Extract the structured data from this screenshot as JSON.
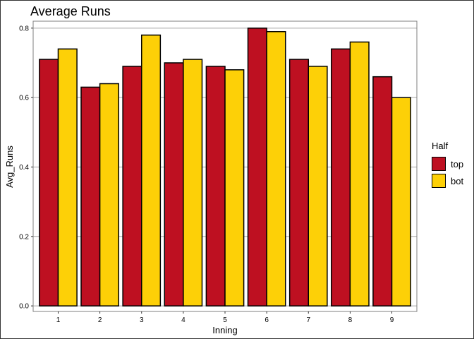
{
  "chart_data": {
    "type": "bar",
    "title": "Average Runs",
    "xlabel": "Inning",
    "ylabel": "Avg_Runs",
    "categories": [
      "1",
      "2",
      "3",
      "4",
      "5",
      "6",
      "7",
      "8",
      "9"
    ],
    "series": [
      {
        "name": "top",
        "color": "#BE1021",
        "values": [
          0.71,
          0.63,
          0.69,
          0.7,
          0.69,
          0.8,
          0.71,
          0.74,
          0.66
        ]
      },
      {
        "name": "bot",
        "color": "#FDD007",
        "values": [
          0.74,
          0.64,
          0.78,
          0.71,
          0.68,
          0.79,
          0.69,
          0.76,
          0.6
        ]
      }
    ],
    "ylim": [
      -0.016,
      0.82
    ],
    "yticks": [
      "0.0",
      "0.2",
      "0.4",
      "0.6",
      "0.8"
    ],
    "grid": "horizontal-major",
    "legend": {
      "title": "Half",
      "position": "right"
    }
  }
}
